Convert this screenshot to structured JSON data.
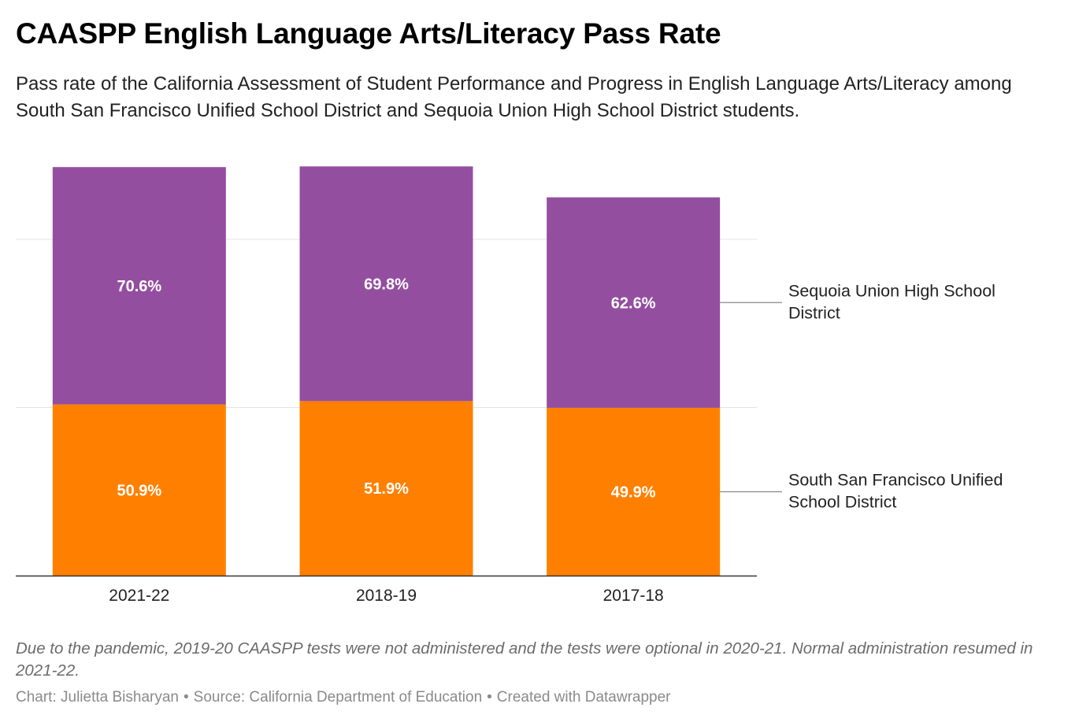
{
  "title": "CAASPP English Language Arts/Literacy Pass Rate",
  "subtitle": "Pass rate of the California Assessment of Student Performance and Progress in English Language Arts/Literacy among South San Francisco Unified School District and Sequoia Union High School District students.",
  "note": "Due to the pandemic, 2019-20 CAASPP tests were not administered and the tests were optional in 2020-21. Normal administration resumed in 2021-22.",
  "credit": {
    "chart": "Chart: Julietta Bisharyan",
    "source": "Source: California Department of Education",
    "tool": "Created with Datawrapper",
    "separator": "•"
  },
  "chart_data": {
    "type": "bar",
    "stacked": true,
    "categories": [
      "2021-22",
      "2018-19",
      "2017-18"
    ],
    "series": [
      {
        "name": "South San Francisco Unified School District",
        "values": [
          50.9,
          51.9,
          49.9
        ],
        "labels": [
          "50.9%",
          "51.9%",
          "49.9%"
        ],
        "color": "#ff8000"
      },
      {
        "name": "Sequoia Union High School District",
        "values": [
          70.6,
          69.8,
          62.6
        ],
        "labels": [
          "70.6%",
          "69.8%",
          "62.6%"
        ],
        "color": "#944ea0"
      }
    ],
    "ylim": [
      0,
      125
    ],
    "gridlines": [
      50,
      100
    ],
    "grid": true,
    "legend": "right, inline labels"
  }
}
